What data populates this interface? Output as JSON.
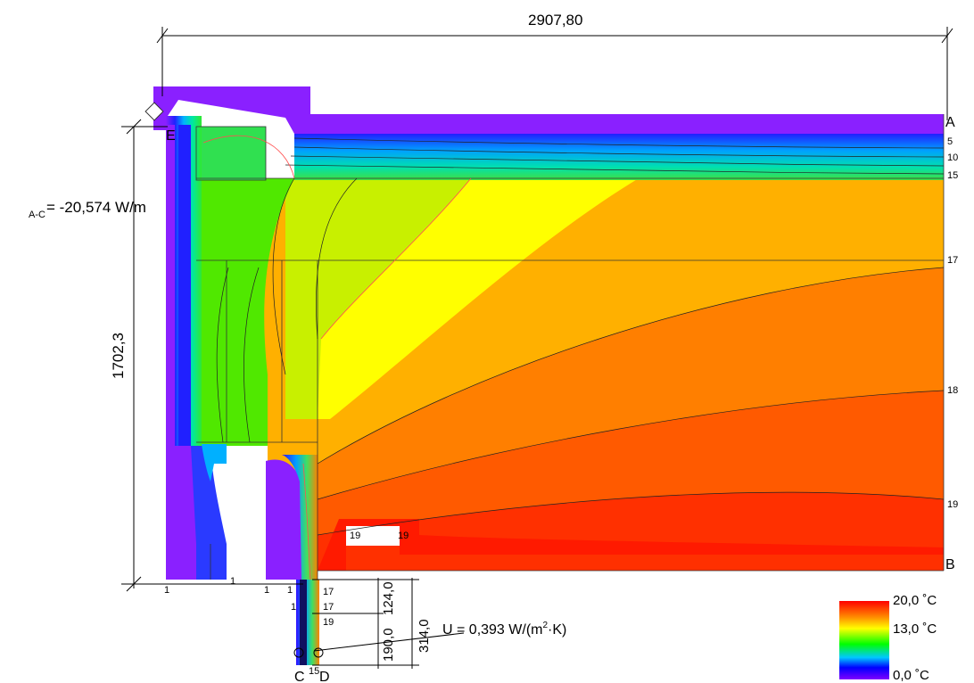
{
  "dimensions": {
    "width_label": "2907,80",
    "height_label": "1702,3",
    "dim_a": "190,0",
    "dim_b": "124,0",
    "dim_c": "314,0"
  },
  "heat_flow": {
    "sub": "A-C",
    "text": "= -20,574 W/m"
  },
  "u_value": {
    "prefix": "U = 0,393 W/(m",
    "sup": "2",
    "suffix": "·K)"
  },
  "points": {
    "a": "A",
    "b": "B",
    "c": "C",
    "d": "D",
    "e": "E"
  },
  "isotherm_labels_right": [
    "5",
    "10",
    "15",
    "17",
    "18",
    "19"
  ],
  "isotherm_labels_bottom": [
    "1",
    "1",
    "1",
    "1",
    "1",
    "17",
    "17",
    "19",
    "19",
    "19",
    "15"
  ],
  "legend": {
    "max": "20,0 ˚C",
    "mid": "13,0 ˚C",
    "min": "0,0 ˚C",
    "colors": [
      "#ff0000",
      "#ff8800",
      "#ffff00",
      "#00ff00",
      "#00c8ff",
      "#0000ff",
      "#8000ff"
    ]
  }
}
